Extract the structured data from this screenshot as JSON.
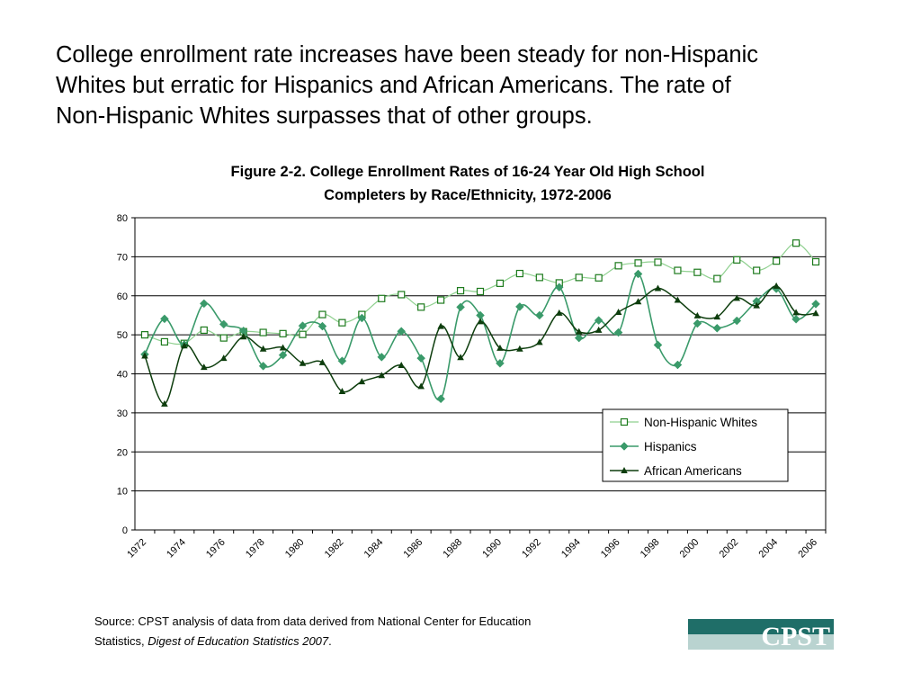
{
  "headline": {
    "line1": "College enrollment rate increases have been steady for non-Hispanic",
    "line2": "Whites but erratic for Hispanics and African Americans. The rate of",
    "line3": "Non-Hispanic Whites surpasses that of other groups."
  },
  "chart_title": {
    "line1": "Figure 2-2. College Enrollment Rates of 16-24 Year Old High School",
    "line2": "Completers by Race/Ethnicity, 1972-2006"
  },
  "chart_data": {
    "type": "line",
    "title": "Figure 2-2. College Enrollment Rates of 16-24 Year Old High School Completers by Race/Ethnicity, 1972-2006",
    "xlabel": "",
    "ylabel": "",
    "ylim": [
      0,
      80
    ],
    "yticks": [
      0,
      10,
      20,
      30,
      40,
      50,
      60,
      70,
      80
    ],
    "x": [
      1972,
      1973,
      1974,
      1975,
      1976,
      1977,
      1978,
      1979,
      1980,
      1981,
      1982,
      1983,
      1984,
      1985,
      1986,
      1987,
      1988,
      1989,
      1990,
      1991,
      1992,
      1993,
      1994,
      1995,
      1996,
      1997,
      1998,
      1999,
      2000,
      2001,
      2002,
      2003,
      2004,
      2005,
      2006
    ],
    "xticks": [
      "1972",
      "1974",
      "1976",
      "1978",
      "1980",
      "1982",
      "1984",
      "1986",
      "1988",
      "1990",
      "1992",
      "1994",
      "1996",
      "1998",
      "2000",
      "2002",
      "2004",
      "2006"
    ],
    "grid": "horizontal",
    "legend_position": "lower-right",
    "series": [
      {
        "name": "Non-Hispanic Whites",
        "color": "#8fd08f",
        "marker": "square",
        "values": [
          50.0,
          48.2,
          47.8,
          51.2,
          49.2,
          50.8,
          50.6,
          50.3,
          50.1,
          55.2,
          53.1,
          55.2,
          59.3,
          60.3,
          57.1,
          58.9,
          61.3,
          61.1,
          63.2,
          65.7,
          64.7,
          63.3,
          64.7,
          64.6,
          67.7,
          68.4,
          68.6,
          66.5,
          66.0,
          64.4,
          69.2,
          66.5,
          68.9,
          73.5,
          68.7
        ]
      },
      {
        "name": "Hispanics",
        "color": "#3a9a6a",
        "marker": "diamond",
        "values": [
          45.0,
          54.1,
          47.5,
          58.0,
          52.7,
          51.0,
          42.0,
          44.8,
          52.3,
          52.2,
          43.3,
          54.3,
          44.3,
          50.9,
          44.0,
          33.6,
          57.1,
          55.0,
          42.7,
          57.2,
          55.0,
          62.2,
          49.2,
          53.7,
          50.6,
          65.6,
          47.4,
          42.3,
          52.9,
          51.7,
          53.6,
          58.6,
          61.8,
          54.0,
          57.9
        ]
      },
      {
        "name": "African Americans",
        "color": "#0d3d0d",
        "marker": "triangle",
        "values": [
          44.6,
          32.3,
          47.2,
          41.7,
          44.0,
          49.5,
          46.4,
          46.7,
          42.7,
          42.9,
          35.5,
          38.0,
          39.6,
          42.2,
          36.8,
          52.2,
          44.2,
          53.4,
          46.6,
          46.4,
          48.1,
          55.6,
          50.8,
          51.2,
          55.8,
          58.5,
          61.9,
          58.9,
          54.9,
          54.6,
          59.4,
          57.5,
          62.5,
          55.7,
          55.5
        ]
      }
    ]
  },
  "source": {
    "prefix": "Source: CPST analysis of data from data derived from National Center for Education",
    "line2_prefix": "Statistics, ",
    "italic": "Digest of Education Statistics 2007",
    "suffix": "."
  },
  "logo": {
    "text": "CPST",
    "color": "#1f6e68"
  }
}
